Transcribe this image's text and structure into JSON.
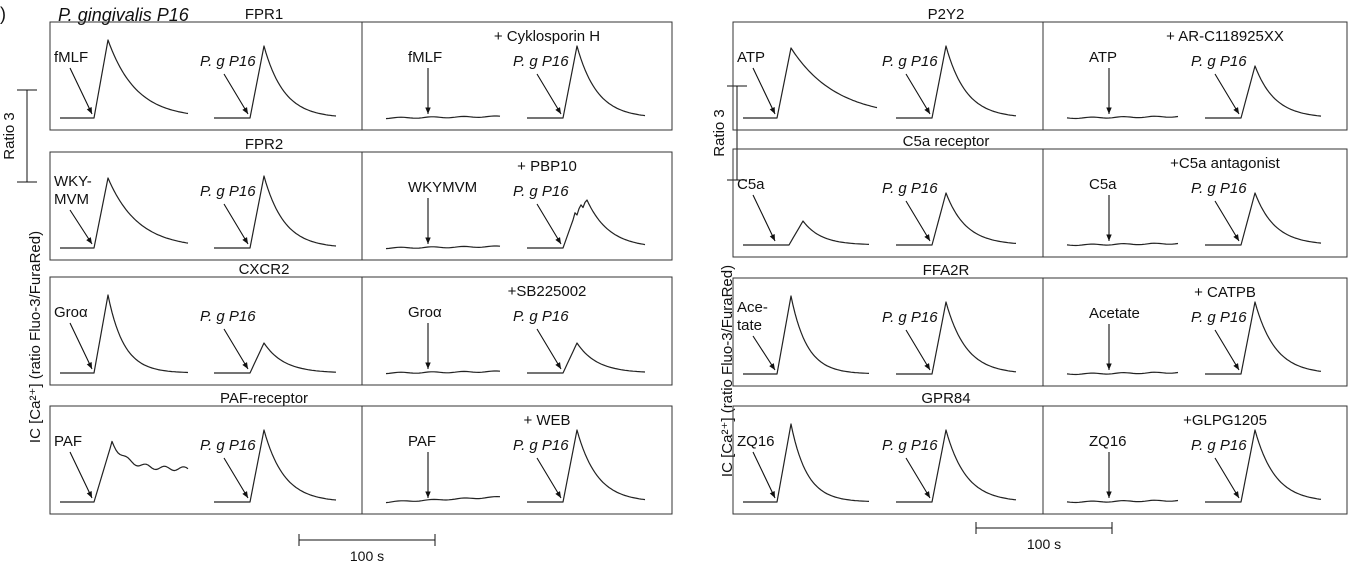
{
  "panel_letter": ")",
  "title": "P. gingivalis P16",
  "y_axis_label": "IC [Ca²⁺] (ratio Fluo-3/FuraRed)",
  "ratio_scale_label": "Ratio 3",
  "time_scale_label": "100 s",
  "chart_data": [
    {
      "type": "line",
      "receptor": "FPR1",
      "inhibitor": "+ Cyklosporin H",
      "cells": [
        {
          "side": "control",
          "agonist": "fMLF",
          "agonist2": "",
          "bacteria": "P. g P16",
          "bact_shape": "normal"
        },
        {
          "side": "inhibited",
          "agonist": "fMLF",
          "agonist2": "",
          "bacteria": "P. g P16",
          "bact_shape": "normal"
        }
      ]
    },
    {
      "type": "line",
      "receptor": "FPR2",
      "inhibitor": "+ PBP10",
      "cells": [
        {
          "side": "control",
          "agonist": "WKY-",
          "agonist2": "MVM",
          "bacteria": "P. g P16",
          "bact_shape": "normal"
        },
        {
          "side": "inhibited",
          "agonist": "WKYMVM",
          "agonist2": "",
          "bacteria": "P. g P16",
          "bact_shape": "bumpy"
        }
      ]
    },
    {
      "type": "line",
      "receptor": "CXCR2",
      "inhibitor": "+SB225002",
      "cells": [
        {
          "side": "control",
          "agonist": "Groα",
          "agonist2": "",
          "bacteria": "P. g P16",
          "bact_shape": "small"
        },
        {
          "side": "inhibited",
          "agonist": "Groα",
          "agonist2": "",
          "bacteria": "P. g P16",
          "bact_shape": "small"
        }
      ]
    },
    {
      "type": "line",
      "receptor": "PAF-receptor",
      "inhibitor": "+ WEB",
      "cells": [
        {
          "side": "control",
          "agonist": "PAF",
          "agonist2": "",
          "bacteria": "P. g P16",
          "bact_shape": "normal"
        },
        {
          "side": "inhibited",
          "agonist": "PAF",
          "agonist2": "",
          "bacteria": "P. g P16",
          "bact_shape": "normal"
        }
      ]
    },
    {
      "type": "line",
      "receptor": "P2Y2",
      "inhibitor": "+ AR-C118925XX",
      "cells": [
        {
          "side": "control",
          "agonist": "ATP",
          "agonist2": "",
          "bacteria": "P. g P16",
          "bact_shape": "normal"
        },
        {
          "side": "inhibited",
          "agonist": "ATP",
          "agonist2": "",
          "bacteria": "P. g P16",
          "bact_shape": "medium"
        }
      ]
    },
    {
      "type": "line",
      "receptor": "C5a receptor",
      "inhibitor": "+C5a antagonist",
      "cells": [
        {
          "side": "control",
          "agonist": "C5a",
          "agonist2": "",
          "bacteria": "P. g P16",
          "bact_shape": "medium"
        },
        {
          "side": "inhibited",
          "agonist": "C5a",
          "agonist2": "",
          "bacteria": "P. g P16",
          "bact_shape": "medium"
        }
      ]
    },
    {
      "type": "line",
      "receptor": "FFA2R",
      "inhibitor": "+ CATPB",
      "cells": [
        {
          "side": "control",
          "agonist": "Ace-",
          "agonist2": "tate",
          "bacteria": "P. g P16",
          "bact_shape": "normal"
        },
        {
          "side": "inhibited",
          "agonist": "Acetate",
          "agonist2": "",
          "bacteria": "P. g P16",
          "bact_shape": "normal"
        }
      ]
    },
    {
      "type": "line",
      "receptor": "GPR84",
      "inhibitor": "+GLPG1205",
      "cells": [
        {
          "side": "control",
          "agonist": "ZQ16",
          "agonist2": "",
          "bacteria": "P. g P16",
          "bact_shape": "normal"
        },
        {
          "side": "inhibited",
          "agonist": "ZQ16",
          "agonist2": "",
          "bacteria": "P. g P16",
          "bact_shape": "normal"
        }
      ]
    }
  ]
}
